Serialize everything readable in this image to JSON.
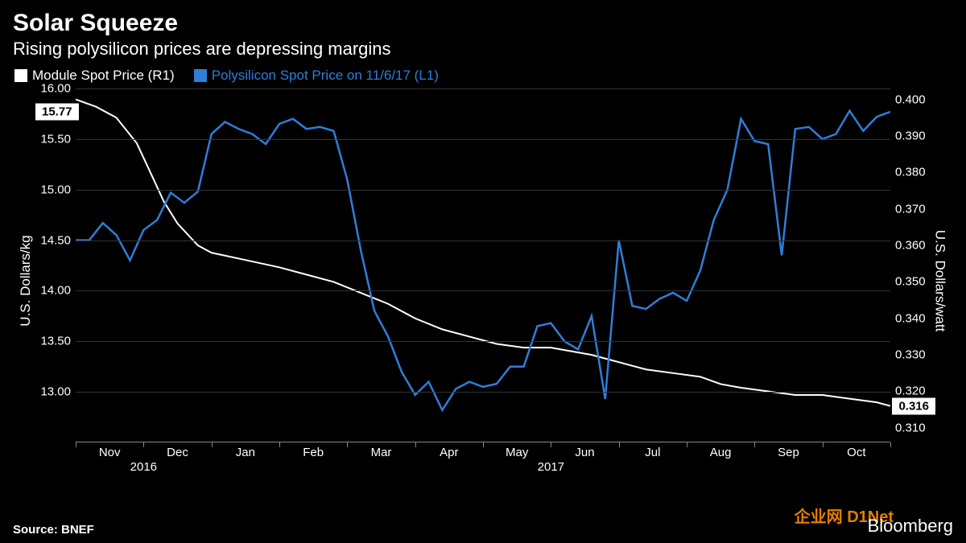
{
  "title": "Solar Squeeze",
  "subtitle": "Rising polysilicon prices are depressing margins",
  "source": "Source: BNEF",
  "brand": "Bloomberg",
  "watermark": "企业网 D1Net",
  "legend": [
    {
      "label": "Module Spot Price (R1)",
      "color": "#ffffff"
    },
    {
      "label": "Polysilicon Spot Price on 11/6/17 (L1)",
      "color": "#2f7ed8"
    }
  ],
  "chart": {
    "type": "line-dual-axis",
    "background_color": "#000000",
    "grid_color": "#333333",
    "axis_color": "#888888",
    "text_color": "#ffffff",
    "left_axis": {
      "title": "U.S. Dollars/kg",
      "min": 12.5,
      "max": 16.0,
      "ticks": [
        13.0,
        13.5,
        14.0,
        14.5,
        15.0,
        15.5,
        16.0
      ]
    },
    "right_axis": {
      "title": "U.S. Dollars/watt",
      "min": 0.306,
      "max": 0.403,
      "ticks": [
        0.31,
        0.32,
        0.33,
        0.34,
        0.35,
        0.36,
        0.37,
        0.38,
        0.39,
        0.4
      ]
    },
    "x_axis": {
      "months": [
        "Nov",
        "Dec",
        "Jan",
        "Feb",
        "Mar",
        "Apr",
        "May",
        "Jun",
        "Jul",
        "Aug",
        "Sep",
        "Oct"
      ],
      "years": [
        {
          "label": "2016",
          "position_month_index": 0.5
        },
        {
          "label": "2017",
          "position_month_index": 6.5
        }
      ]
    },
    "callouts": [
      {
        "text": "15.77",
        "side": "left",
        "value": 15.77,
        "bg": "#ffffff",
        "fg": "#000000"
      },
      {
        "text": "0.316",
        "side": "right",
        "value": 0.316,
        "bg": "#ffffff",
        "fg": "#000000"
      }
    ],
    "series": [
      {
        "name": "Module Spot Price",
        "axis": "right",
        "color": "#ffffff",
        "line_width": 2,
        "points": [
          [
            0.0,
            0.4
          ],
          [
            0.3,
            0.398
          ],
          [
            0.6,
            0.395
          ],
          [
            0.9,
            0.388
          ],
          [
            1.1,
            0.38
          ],
          [
            1.3,
            0.372
          ],
          [
            1.5,
            0.366
          ],
          [
            1.8,
            0.36
          ],
          [
            2.0,
            0.358
          ],
          [
            2.5,
            0.356
          ],
          [
            3.0,
            0.354
          ],
          [
            3.4,
            0.352
          ],
          [
            3.8,
            0.35
          ],
          [
            4.2,
            0.347
          ],
          [
            4.6,
            0.344
          ],
          [
            5.0,
            0.34
          ],
          [
            5.4,
            0.337
          ],
          [
            5.8,
            0.335
          ],
          [
            6.2,
            0.333
          ],
          [
            6.6,
            0.332
          ],
          [
            7.0,
            0.332
          ],
          [
            7.3,
            0.331
          ],
          [
            7.6,
            0.33
          ],
          [
            8.0,
            0.328
          ],
          [
            8.4,
            0.326
          ],
          [
            8.8,
            0.325
          ],
          [
            9.2,
            0.324
          ],
          [
            9.5,
            0.322
          ],
          [
            9.8,
            0.321
          ],
          [
            10.2,
            0.32
          ],
          [
            10.6,
            0.319
          ],
          [
            11.0,
            0.319
          ],
          [
            11.4,
            0.318
          ],
          [
            11.8,
            0.317
          ],
          [
            12.0,
            0.316
          ]
        ]
      },
      {
        "name": "Polysilicon Spot Price",
        "axis": "left",
        "color": "#2f7ed8",
        "line_width": 2.5,
        "points": [
          [
            0.0,
            14.5
          ],
          [
            0.2,
            14.5
          ],
          [
            0.4,
            14.67
          ],
          [
            0.6,
            14.55
          ],
          [
            0.8,
            14.3
          ],
          [
            1.0,
            14.6
          ],
          [
            1.2,
            14.7
          ],
          [
            1.4,
            14.97
          ],
          [
            1.6,
            14.87
          ],
          [
            1.8,
            14.98
          ],
          [
            2.0,
            15.55
          ],
          [
            2.2,
            15.67
          ],
          [
            2.4,
            15.6
          ],
          [
            2.6,
            15.55
          ],
          [
            2.8,
            15.45
          ],
          [
            3.0,
            15.65
          ],
          [
            3.2,
            15.7
          ],
          [
            3.4,
            15.6
          ],
          [
            3.6,
            15.62
          ],
          [
            3.8,
            15.58
          ],
          [
            4.0,
            15.1
          ],
          [
            4.2,
            14.4
          ],
          [
            4.4,
            13.8
          ],
          [
            4.6,
            13.55
          ],
          [
            4.8,
            13.2
          ],
          [
            5.0,
            12.97
          ],
          [
            5.2,
            13.1
          ],
          [
            5.4,
            12.82
          ],
          [
            5.6,
            13.03
          ],
          [
            5.8,
            13.1
          ],
          [
            6.0,
            13.05
          ],
          [
            6.2,
            13.08
          ],
          [
            6.4,
            13.25
          ],
          [
            6.6,
            13.25
          ],
          [
            6.8,
            13.65
          ],
          [
            7.0,
            13.68
          ],
          [
            7.2,
            13.5
          ],
          [
            7.4,
            13.42
          ],
          [
            7.6,
            13.75
          ],
          [
            7.8,
            12.93
          ],
          [
            8.0,
            14.5
          ],
          [
            8.2,
            13.85
          ],
          [
            8.4,
            13.82
          ],
          [
            8.6,
            13.92
          ],
          [
            8.8,
            13.98
          ],
          [
            9.0,
            13.9
          ],
          [
            9.2,
            14.2
          ],
          [
            9.4,
            14.7
          ],
          [
            9.6,
            15.0
          ],
          [
            9.8,
            15.7
          ],
          [
            10.0,
            15.48
          ],
          [
            10.2,
            15.45
          ],
          [
            10.4,
            14.35
          ],
          [
            10.6,
            15.6
          ],
          [
            10.8,
            15.62
          ],
          [
            11.0,
            15.5
          ],
          [
            11.2,
            15.55
          ],
          [
            11.4,
            15.78
          ],
          [
            11.6,
            15.58
          ],
          [
            11.8,
            15.72
          ],
          [
            12.0,
            15.77
          ]
        ]
      }
    ]
  }
}
